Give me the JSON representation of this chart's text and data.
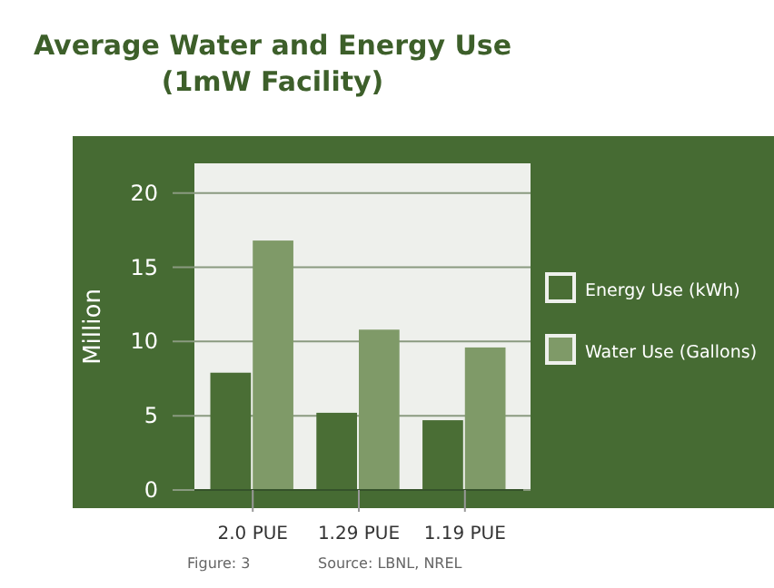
{
  "chart_data": {
    "type": "bar",
    "title": "Average Water and Energy Use",
    "subtitle": "(1mW Facility)",
    "ylabel": "Million",
    "categories": [
      "2.0 PUE",
      "1.29 PUE",
      "1.19 PUE"
    ],
    "series": [
      {
        "name": "Energy Use (kWh)",
        "color": "#4a6e35",
        "values": [
          7.9,
          5.2,
          4.7
        ]
      },
      {
        "name": "Water Use (Gallons)",
        "color": "#7f9a68",
        "values": [
          16.8,
          10.8,
          9.6
        ]
      }
    ],
    "ylim": [
      0,
      22
    ],
    "yticks": [
      0,
      5,
      10,
      15,
      20
    ],
    "grid": "y",
    "legend": "right",
    "annotations": [
      "Figure: 3",
      "Source: LBNL, NREL"
    ]
  }
}
